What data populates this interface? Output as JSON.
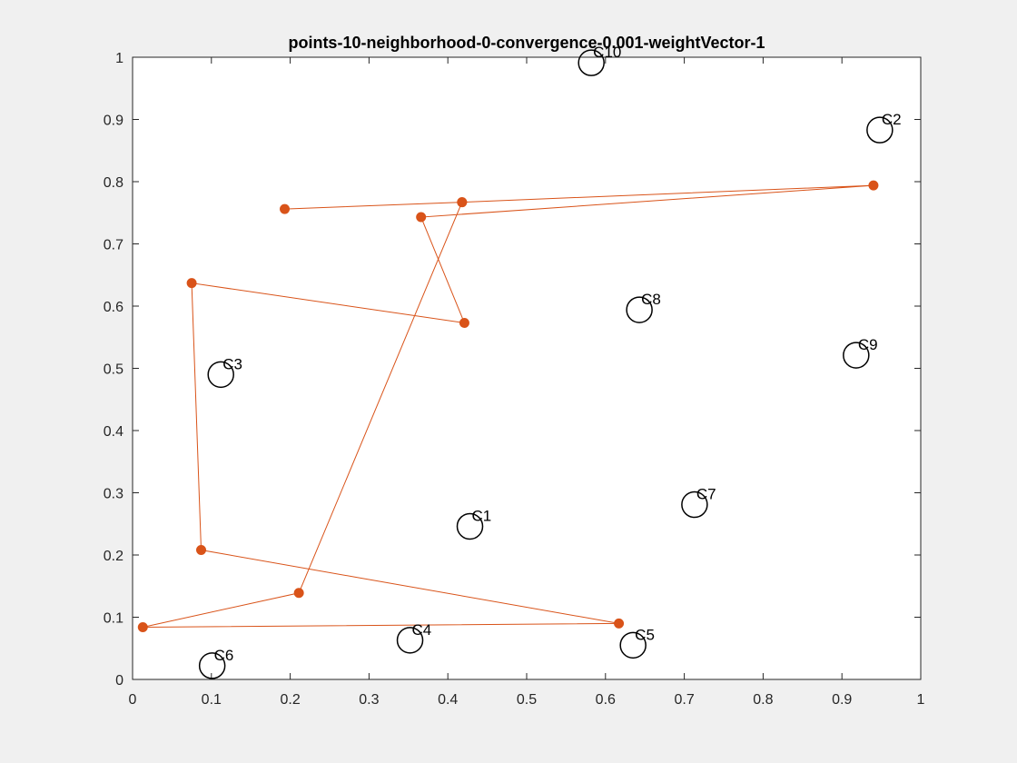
{
  "chart_data": {
    "type": "scatter",
    "title": "points-10-neighborhood-0-convergence-0.001-weightVector-1",
    "xlabel": "",
    "ylabel": "",
    "xlim": [
      0,
      1
    ],
    "ylim": [
      0,
      1
    ],
    "x_ticks": [
      0,
      0.1,
      0.2,
      0.3,
      0.4,
      0.5,
      0.6,
      0.7,
      0.8,
      0.9,
      1
    ],
    "y_ticks": [
      0,
      0.1,
      0.2,
      0.3,
      0.4,
      0.5,
      0.6,
      0.7,
      0.8,
      0.9,
      1
    ],
    "x_tick_labels": [
      "0",
      "0.1",
      "0.2",
      "0.3",
      "0.4",
      "0.5",
      "0.6",
      "0.7",
      "0.8",
      "0.9",
      "1"
    ],
    "y_tick_labels": [
      "0",
      "0.1",
      "0.2",
      "0.3",
      "0.4",
      "0.5",
      "0.6",
      "0.7",
      "0.8",
      "0.9",
      "1"
    ],
    "grid": false,
    "legend": "none",
    "colors": {
      "path": "#d95319",
      "points": "#000000",
      "axes": "#262626",
      "background": "#ffffff",
      "figure": "#f0f0f0"
    },
    "series": [
      {
        "kind": "labeled-circles",
        "points": [
          {
            "label": "C1",
            "x": 0.428,
            "y": 0.246
          },
          {
            "label": "C2",
            "x": 0.948,
            "y": 0.883
          },
          {
            "label": "C3",
            "x": 0.112,
            "y": 0.49
          },
          {
            "label": "C4",
            "x": 0.352,
            "y": 0.063
          },
          {
            "label": "C5",
            "x": 0.635,
            "y": 0.055
          },
          {
            "label": "C6",
            "x": 0.101,
            "y": 0.022
          },
          {
            "label": "C7",
            "x": 0.713,
            "y": 0.281
          },
          {
            "label": "C8",
            "x": 0.643,
            "y": 0.594
          },
          {
            "label": "C9",
            "x": 0.918,
            "y": 0.521
          },
          {
            "label": "C10",
            "x": 0.582,
            "y": 0.991
          }
        ]
      },
      {
        "kind": "path",
        "points": [
          {
            "x": 0.193,
            "y": 0.756
          },
          {
            "x": 0.418,
            "y": 0.767
          },
          {
            "x": 0.94,
            "y": 0.794
          },
          {
            "x": 0.366,
            "y": 0.743
          },
          {
            "x": 0.421,
            "y": 0.573
          },
          {
            "x": 0.075,
            "y": 0.637
          },
          {
            "x": 0.087,
            "y": 0.208
          },
          {
            "x": 0.617,
            "y": 0.09
          },
          {
            "x": 0.013,
            "y": 0.084
          },
          {
            "x": 0.211,
            "y": 0.139
          },
          {
            "x": 0.418,
            "y": 0.767
          }
        ]
      }
    ]
  }
}
